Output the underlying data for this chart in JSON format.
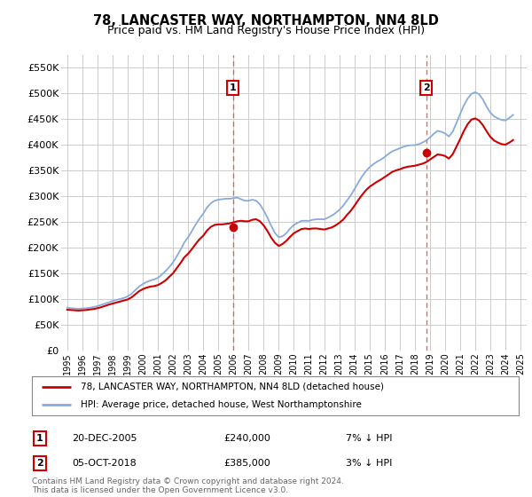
{
  "title": "78, LANCASTER WAY, NORTHAMPTON, NN4 8LD",
  "subtitle": "Price paid vs. HM Land Registry's House Price Index (HPI)",
  "title_fontsize": 10.5,
  "subtitle_fontsize": 9,
  "line1_color": "#cc0000",
  "line2_color": "#88aadd",
  "bg_color": "#ffffff",
  "grid_color": "#cccccc",
  "ylim": [
    0,
    575000
  ],
  "yticks": [
    0,
    50000,
    100000,
    150000,
    200000,
    250000,
    300000,
    350000,
    400000,
    450000,
    500000,
    550000
  ],
  "ytick_labels": [
    "£0",
    "£50K",
    "£100K",
    "£150K",
    "£200K",
    "£250K",
    "£300K",
    "£350K",
    "£400K",
    "£450K",
    "£500K",
    "£550K"
  ],
  "sale1_year": 2005.97,
  "sale1_price": 240000,
  "sale1_label": "1",
  "sale2_year": 2018.76,
  "sale2_price": 385000,
  "sale2_label": "2",
  "legend_line1": "78, LANCASTER WAY, NORTHAMPTON, NN4 8LD (detached house)",
  "legend_line2": "HPI: Average price, detached house, West Northamptonshire",
  "ann1_date": "20-DEC-2005",
  "ann1_price": "£240,000",
  "ann1_hpi": "7% ↓ HPI",
  "ann2_date": "05-OCT-2018",
  "ann2_price": "£385,000",
  "ann2_hpi": "3% ↓ HPI",
  "footer": "Contains HM Land Registry data © Crown copyright and database right 2024.\nThis data is licensed under the Open Government Licence v3.0.",
  "hpi_years": [
    1995.0,
    1995.25,
    1995.5,
    1995.75,
    1996.0,
    1996.25,
    1996.5,
    1996.75,
    1997.0,
    1997.25,
    1997.5,
    1997.75,
    1998.0,
    1998.25,
    1998.5,
    1998.75,
    1999.0,
    1999.25,
    1999.5,
    1999.75,
    2000.0,
    2000.25,
    2000.5,
    2000.75,
    2001.0,
    2001.25,
    2001.5,
    2001.75,
    2002.0,
    2002.25,
    2002.5,
    2002.75,
    2003.0,
    2003.25,
    2003.5,
    2003.75,
    2004.0,
    2004.25,
    2004.5,
    2004.75,
    2005.0,
    2005.25,
    2005.5,
    2005.75,
    2006.0,
    2006.25,
    2006.5,
    2006.75,
    2007.0,
    2007.25,
    2007.5,
    2007.75,
    2008.0,
    2008.25,
    2008.5,
    2008.75,
    2009.0,
    2009.25,
    2009.5,
    2009.75,
    2010.0,
    2010.25,
    2010.5,
    2010.75,
    2011.0,
    2011.25,
    2011.5,
    2011.75,
    2012.0,
    2012.25,
    2012.5,
    2012.75,
    2013.0,
    2013.25,
    2013.5,
    2013.75,
    2014.0,
    2014.25,
    2014.5,
    2014.75,
    2015.0,
    2015.25,
    2015.5,
    2015.75,
    2016.0,
    2016.25,
    2016.5,
    2016.75,
    2017.0,
    2017.25,
    2017.5,
    2017.75,
    2018.0,
    2018.25,
    2018.5,
    2018.75,
    2019.0,
    2019.25,
    2019.5,
    2019.75,
    2020.0,
    2020.25,
    2020.5,
    2020.75,
    2021.0,
    2021.25,
    2021.5,
    2021.75,
    2022.0,
    2022.25,
    2022.5,
    2022.75,
    2023.0,
    2023.25,
    2023.5,
    2023.75,
    2024.0,
    2024.25,
    2024.5
  ],
  "hpi_values": [
    83000,
    82000,
    81500,
    81000,
    81500,
    82000,
    83000,
    84500,
    86000,
    88500,
    91000,
    93500,
    96000,
    98000,
    100000,
    102000,
    105000,
    110000,
    117000,
    124000,
    129000,
    133000,
    136000,
    138000,
    141000,
    147000,
    154000,
    162000,
    171000,
    183000,
    196000,
    210000,
    220000,
    232000,
    245000,
    256000,
    266000,
    278000,
    286000,
    291000,
    293000,
    294000,
    295000,
    295000,
    296000,
    297000,
    294000,
    291000,
    291000,
    293000,
    291000,
    284000,
    272000,
    258000,
    242000,
    228000,
    220000,
    222000,
    228000,
    237000,
    244000,
    248000,
    252000,
    252000,
    252000,
    254000,
    255000,
    255000,
    255000,
    258000,
    262000,
    267000,
    273000,
    281000,
    291000,
    301000,
    313000,
    326000,
    338000,
    348000,
    356000,
    362000,
    367000,
    371000,
    376000,
    382000,
    387000,
    390000,
    393000,
    396000,
    398000,
    399000,
    399000,
    401000,
    404000,
    408000,
    414000,
    421000,
    427000,
    425000,
    422000,
    416000,
    425000,
    442000,
    460000,
    477000,
    490000,
    499000,
    502000,
    498000,
    488000,
    474000,
    462000,
    455000,
    451000,
    448000,
    447000,
    452000,
    458000
  ],
  "red_values": [
    79000,
    78500,
    78000,
    77500,
    78000,
    78500,
    79500,
    80500,
    82000,
    84000,
    86500,
    89000,
    91000,
    93000,
    95000,
    97000,
    99000,
    103000,
    109000,
    115000,
    119000,
    122000,
    124000,
    125000,
    127000,
    131000,
    136000,
    143000,
    150000,
    160000,
    170000,
    181000,
    188000,
    197000,
    207000,
    216000,
    223000,
    233000,
    240000,
    244000,
    245000,
    245000,
    246000,
    247000,
    249000,
    251000,
    252000,
    251000,
    251000,
    254000,
    255000,
    251000,
    243000,
    232000,
    219000,
    209000,
    203000,
    207000,
    213000,
    221000,
    228000,
    232000,
    236000,
    237000,
    236000,
    237000,
    237000,
    236000,
    235000,
    237000,
    239000,
    243000,
    248000,
    254000,
    263000,
    271000,
    281000,
    292000,
    302000,
    311000,
    318000,
    323000,
    328000,
    332000,
    337000,
    342000,
    347000,
    350000,
    352000,
    355000,
    357000,
    358000,
    359000,
    361000,
    363000,
    366000,
    371000,
    376000,
    381000,
    380000,
    378000,
    373000,
    381000,
    396000,
    411000,
    427000,
    440000,
    449000,
    451000,
    447000,
    438000,
    426000,
    415000,
    408000,
    404000,
    401000,
    400000,
    404000,
    409000
  ]
}
